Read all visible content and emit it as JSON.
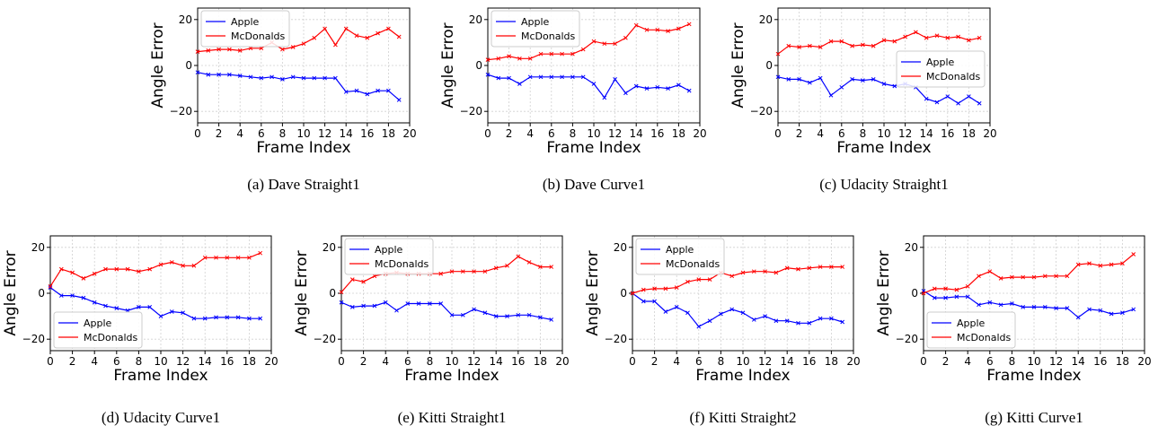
{
  "chart_data": [
    {
      "type": "line",
      "caption": "(a) Dave Straight1",
      "xlabel": "Frame Index",
      "ylabel": "Angle Error",
      "xlim": [
        0,
        20
      ],
      "ylim": [
        -25,
        25
      ],
      "xticks": [
        "0",
        "2",
        "4",
        "6",
        "8",
        "10",
        "12",
        "14",
        "16",
        "18",
        "20"
      ],
      "yticks": [
        "20",
        "0",
        "−20"
      ],
      "legend_position": "top-left",
      "x": [
        0,
        1,
        2,
        3,
        4,
        5,
        6,
        7,
        8,
        9,
        10,
        11,
        12,
        13,
        14,
        15,
        16,
        17,
        18,
        19
      ],
      "series": [
        {
          "name": "Apple",
          "color": "#0000ff",
          "values": [
            -3,
            -4,
            -4,
            -4,
            -4.5,
            -5,
            -5.5,
            -5,
            -6,
            -5,
            -5.5,
            -5.5,
            -5.5,
            -5.5,
            -11.5,
            -11,
            -12.5,
            -11,
            -11,
            -15
          ]
        },
        {
          "name": "McDonalds",
          "color": "#ff0000",
          "values": [
            6,
            6.5,
            7,
            7,
            6.5,
            7.5,
            7.5,
            10,
            7,
            8,
            9.5,
            12,
            16,
            9,
            16,
            13,
            12,
            14,
            16,
            12.5
          ]
        }
      ]
    },
    {
      "type": "line",
      "caption": "(b) Dave Curve1",
      "xlabel": "Frame Index",
      "ylabel": "Angle Error",
      "xlim": [
        0,
        20
      ],
      "ylim": [
        -25,
        25
      ],
      "xticks": [
        "0",
        "2",
        "4",
        "6",
        "8",
        "10",
        "12",
        "14",
        "16",
        "18",
        "20"
      ],
      "yticks": [
        "20",
        "0",
        "−20"
      ],
      "legend_position": "top-left",
      "x": [
        0,
        1,
        2,
        3,
        4,
        5,
        6,
        7,
        8,
        9,
        10,
        11,
        12,
        13,
        14,
        15,
        16,
        17,
        18,
        19
      ],
      "series": [
        {
          "name": "Apple",
          "color": "#0000ff",
          "values": [
            -4,
            -5.5,
            -5.5,
            -8,
            -5,
            -5,
            -5,
            -5,
            -5,
            -5,
            -8,
            -14,
            -6,
            -12,
            -9,
            -10,
            -9.5,
            -10,
            -8.5,
            -11
          ]
        },
        {
          "name": "McDonalds",
          "color": "#ff0000",
          "values": [
            2.5,
            3,
            4,
            3,
            3,
            5,
            5,
            5,
            5,
            7,
            10.5,
            9.5,
            9.5,
            12,
            17.5,
            15.5,
            15.5,
            15,
            16,
            18
          ]
        }
      ]
    },
    {
      "type": "line",
      "caption": "(c) Udacity Straight1",
      "xlabel": "Frame Index",
      "ylabel": "Angle Error",
      "xlim": [
        0,
        20
      ],
      "ylim": [
        -25,
        25
      ],
      "xticks": [
        "0",
        "2",
        "4",
        "6",
        "8",
        "10",
        "12",
        "14",
        "16",
        "18",
        "20"
      ],
      "yticks": [
        "20",
        "0",
        "−20"
      ],
      "legend_position": "center-right",
      "x": [
        0,
        1,
        2,
        3,
        4,
        5,
        6,
        7,
        8,
        9,
        10,
        11,
        12,
        13,
        14,
        15,
        16,
        17,
        18,
        19
      ],
      "series": [
        {
          "name": "Apple",
          "color": "#0000ff",
          "values": [
            -5,
            -6,
            -6,
            -7.5,
            -5.5,
            -13,
            -9.5,
            -6,
            -6.5,
            -6,
            -8,
            -9,
            -8,
            -9.5,
            -14.5,
            -16,
            -13.5,
            -16.5,
            -13.5,
            -16.5
          ]
        },
        {
          "name": "McDonalds",
          "color": "#ff0000",
          "values": [
            5,
            8.5,
            8,
            8.5,
            8,
            10.5,
            10.5,
            8.5,
            9,
            8.5,
            11,
            10.5,
            12.5,
            14.5,
            12,
            13,
            12,
            12.5,
            11,
            12
          ]
        }
      ]
    },
    {
      "type": "line",
      "caption": "(d) Udacity Curve1",
      "xlabel": "Frame Index",
      "ylabel": "Angle Error",
      "xlim": [
        0,
        20
      ],
      "ylim": [
        -25,
        25
      ],
      "xticks": [
        "0",
        "2",
        "4",
        "6",
        "8",
        "10",
        "12",
        "14",
        "16",
        "18",
        "20"
      ],
      "yticks": [
        "20",
        "0",
        "−20"
      ],
      "legend_position": "bottom-left",
      "x": [
        0,
        1,
        2,
        3,
        4,
        5,
        6,
        7,
        8,
        9,
        10,
        11,
        12,
        13,
        14,
        15,
        16,
        17,
        18,
        19
      ],
      "series": [
        {
          "name": "Apple",
          "color": "#0000ff",
          "values": [
            2.5,
            -1,
            -1,
            -2,
            -4,
            -5.5,
            -6.5,
            -7.5,
            -6,
            -6,
            -10,
            -8,
            -8.5,
            -11,
            -11,
            -10.5,
            -10.5,
            -10.5,
            -11,
            -11
          ]
        },
        {
          "name": "McDonalds",
          "color": "#ff0000",
          "values": [
            3,
            10.5,
            9,
            6.5,
            8.5,
            10.5,
            10.5,
            10.5,
            9.5,
            10.5,
            12.5,
            13.5,
            12,
            12,
            15.5,
            15.5,
            15.5,
            15.5,
            15.5,
            17.5
          ]
        }
      ]
    },
    {
      "type": "line",
      "caption": "(e) Kitti Straight1",
      "xlabel": "Frame Index",
      "ylabel": "Angle Error",
      "xlim": [
        0,
        20
      ],
      "ylim": [
        -25,
        25
      ],
      "xticks": [
        "0",
        "2",
        "4",
        "6",
        "8",
        "10",
        "12",
        "14",
        "16",
        "18",
        "20"
      ],
      "yticks": [
        "20",
        "0",
        "−20"
      ],
      "legend_position": "top-left",
      "x": [
        0,
        1,
        2,
        3,
        4,
        5,
        6,
        7,
        8,
        9,
        10,
        11,
        12,
        13,
        14,
        15,
        16,
        17,
        18,
        19
      ],
      "series": [
        {
          "name": "Apple",
          "color": "#0000ff",
          "values": [
            -4,
            -6,
            -5.5,
            -5.5,
            -4,
            -7.5,
            -4.5,
            -4.5,
            -4.5,
            -4.5,
            -9.5,
            -9.5,
            -7,
            -8.5,
            -10,
            -10,
            -9.5,
            -9.5,
            -10.5,
            -11.5
          ]
        },
        {
          "name": "McDonalds",
          "color": "#ff0000",
          "values": [
            0.5,
            6,
            5,
            7.5,
            8.5,
            9,
            8.5,
            8.5,
            8.5,
            8.5,
            9.5,
            9.5,
            9.5,
            9.5,
            11,
            12,
            16,
            13.5,
            11.5,
            11.5
          ]
        }
      ]
    },
    {
      "type": "line",
      "caption": "(f) Kitti Straight2",
      "xlabel": "Frame Index",
      "ylabel": "Angle Error",
      "xlim": [
        0,
        20
      ],
      "ylim": [
        -25,
        25
      ],
      "xticks": [
        "0",
        "2",
        "4",
        "6",
        "8",
        "10",
        "12",
        "14",
        "16",
        "18",
        "20"
      ],
      "yticks": [
        "20",
        "0",
        "−20"
      ],
      "legend_position": "top-left",
      "x": [
        0,
        1,
        2,
        3,
        4,
        5,
        6,
        7,
        8,
        9,
        10,
        11,
        12,
        13,
        14,
        15,
        16,
        17,
        18,
        19
      ],
      "series": [
        {
          "name": "Apple",
          "color": "#0000ff",
          "values": [
            0,
            -3.5,
            -3.5,
            -8,
            -6,
            -8.5,
            -14.5,
            -12,
            -9,
            -7,
            -8.5,
            -11.5,
            -10,
            -12,
            -12,
            -13,
            -13,
            -11,
            -11,
            -12.5
          ]
        },
        {
          "name": "McDonalds",
          "color": "#ff0000",
          "values": [
            0,
            1.5,
            2,
            2,
            2.5,
            5,
            6,
            6,
            9,
            7.5,
            9,
            9.5,
            9.5,
            9,
            11,
            10.5,
            11,
            11.5,
            11.5,
            11.5
          ]
        }
      ]
    },
    {
      "type": "line",
      "caption": "(g) Kitti Curve1",
      "xlabel": "Frame Index",
      "ylabel": "Angle Error",
      "xlim": [
        0,
        20
      ],
      "ylim": [
        -25,
        25
      ],
      "xticks": [
        "0",
        "2",
        "4",
        "6",
        "8",
        "10",
        "12",
        "14",
        "16",
        "18",
        "20"
      ],
      "yticks": [
        "20",
        "0",
        "−20"
      ],
      "legend_position": "bottom-left",
      "x": [
        0,
        1,
        2,
        3,
        4,
        5,
        6,
        7,
        8,
        9,
        10,
        11,
        12,
        13,
        14,
        15,
        16,
        17,
        18,
        19
      ],
      "series": [
        {
          "name": "Apple",
          "color": "#0000ff",
          "values": [
            1,
            -2,
            -2,
            -1.5,
            -1.5,
            -5,
            -4,
            -5,
            -4.5,
            -6,
            -6,
            -6,
            -6.5,
            -6.5,
            -10.5,
            -7,
            -7.5,
            -9,
            -8.5,
            -7
          ]
        },
        {
          "name": "McDonalds",
          "color": "#ff0000",
          "values": [
            0,
            2,
            2,
            1.5,
            3,
            7.5,
            9.5,
            6.5,
            7,
            7,
            7,
            7.5,
            7.5,
            7.5,
            12.5,
            13,
            12,
            12.5,
            13,
            17
          ]
        }
      ]
    }
  ]
}
